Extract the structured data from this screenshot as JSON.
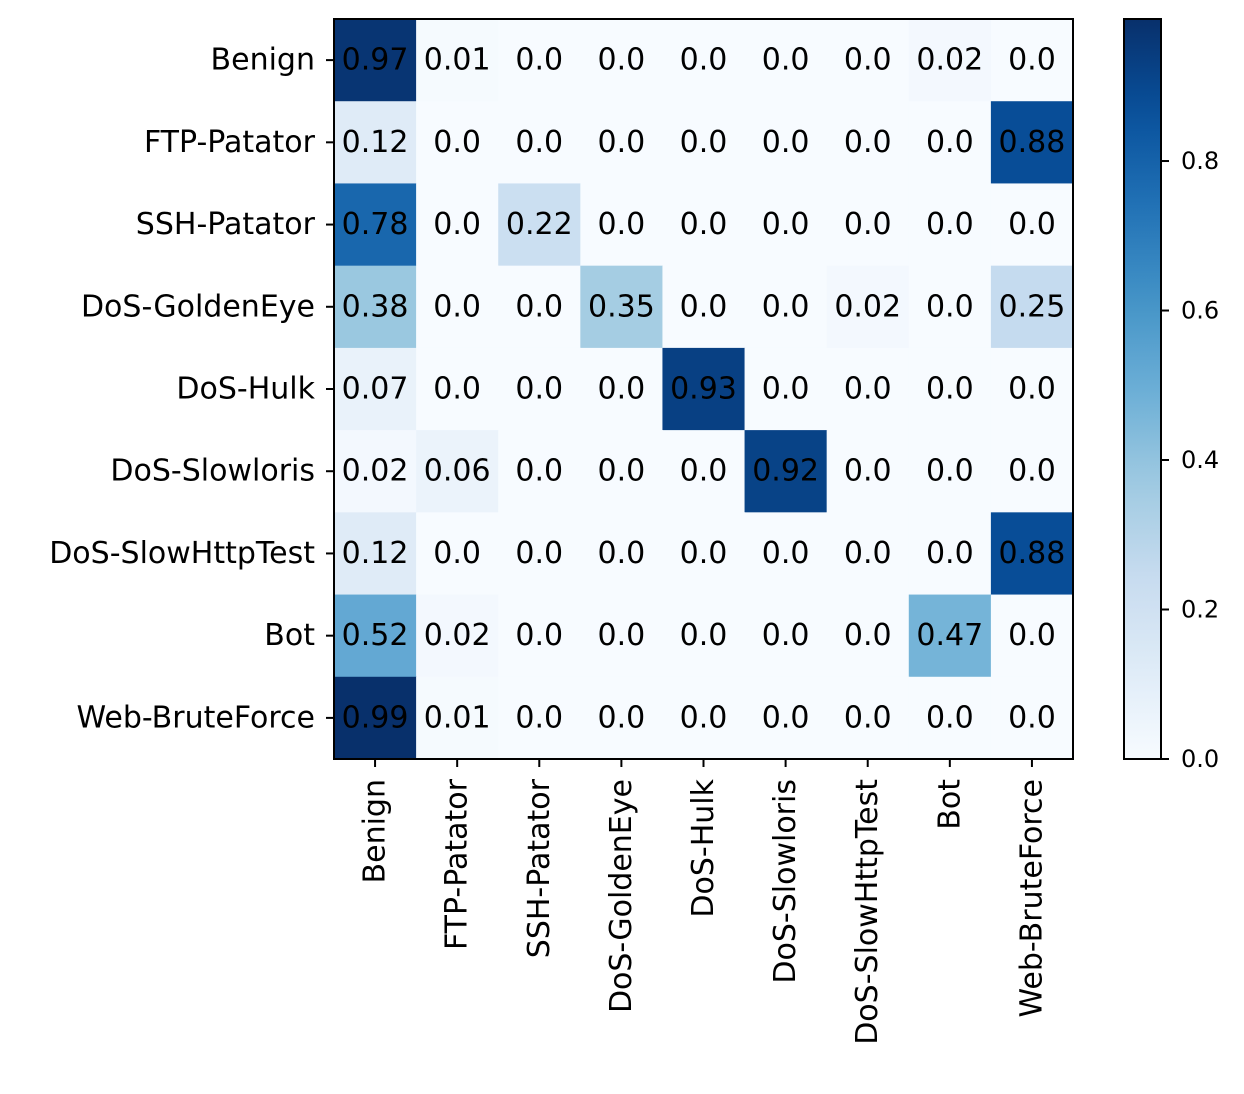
{
  "chart_data": {
    "type": "heatmap",
    "colormap": "Blues",
    "row_labels": [
      "Benign",
      "FTP-Patator",
      "SSH-Patator",
      "DoS-GoldenEye",
      "DoS-Hulk",
      "DoS-Slowloris",
      "DoS-SlowHttpTest",
      "Bot",
      "Web-BruteForce"
    ],
    "col_labels": [
      "Benign",
      "FTP-Patator",
      "SSH-Patator",
      "DoS-GoldenEye",
      "DoS-Hulk",
      "DoS-Slowloris",
      "DoS-SlowHttpTest",
      "Bot",
      "Web-BruteForce"
    ],
    "values": [
      [
        0.97,
        0.01,
        0.0,
        0.0,
        0.0,
        0.0,
        0.0,
        0.02,
        0.0
      ],
      [
        0.12,
        0.0,
        0.0,
        0.0,
        0.0,
        0.0,
        0.0,
        0.0,
        0.88
      ],
      [
        0.78,
        0.0,
        0.22,
        0.0,
        0.0,
        0.0,
        0.0,
        0.0,
        0.0
      ],
      [
        0.38,
        0.0,
        0.0,
        0.35,
        0.0,
        0.0,
        0.02,
        0.0,
        0.25
      ],
      [
        0.07,
        0.0,
        0.0,
        0.0,
        0.93,
        0.0,
        0.0,
        0.0,
        0.0
      ],
      [
        0.02,
        0.06,
        0.0,
        0.0,
        0.0,
        0.92,
        0.0,
        0.0,
        0.0
      ],
      [
        0.12,
        0.0,
        0.0,
        0.0,
        0.0,
        0.0,
        0.0,
        0.0,
        0.88
      ],
      [
        0.52,
        0.02,
        0.0,
        0.0,
        0.0,
        0.0,
        0.0,
        0.47,
        0.0
      ],
      [
        0.99,
        0.01,
        0.0,
        0.0,
        0.0,
        0.0,
        0.0,
        0.0,
        0.0
      ]
    ],
    "cell_labels": [
      [
        "0.97",
        "0.01",
        "0.0",
        "0.0",
        "0.0",
        "0.0",
        "0.0",
        "0.02",
        "0.0"
      ],
      [
        "0.12",
        "0.0",
        "0.0",
        "0.0",
        "0.0",
        "0.0",
        "0.0",
        "0.0",
        "0.88"
      ],
      [
        "0.78",
        "0.0",
        "0.22",
        "0.0",
        "0.0",
        "0.0",
        "0.0",
        "0.0",
        "0.0"
      ],
      [
        "0.38",
        "0.0",
        "0.0",
        "0.35",
        "0.0",
        "0.0",
        "0.02",
        "0.0",
        "0.25"
      ],
      [
        "0.07",
        "0.0",
        "0.0",
        "0.0",
        "0.93",
        "0.0",
        "0.0",
        "0.0",
        "0.0"
      ],
      [
        "0.02",
        "0.06",
        "0.0",
        "0.0",
        "0.0",
        "0.92",
        "0.0",
        "0.0",
        "0.0"
      ],
      [
        "0.12",
        "0.0",
        "0.0",
        "0.0",
        "0.0",
        "0.0",
        "0.0",
        "0.0",
        "0.88"
      ],
      [
        "0.52",
        "0.02",
        "0.0",
        "0.0",
        "0.0",
        "0.0",
        "0.0",
        "0.47",
        "0.0"
      ],
      [
        "0.99",
        "0.01",
        "0.0",
        "0.0",
        "0.0",
        "0.0",
        "0.0",
        "0.0",
        "0.0"
      ]
    ],
    "colorbar": {
      "range": [
        0.0,
        0.99
      ],
      "ticks": [
        0.0,
        0.2,
        0.4,
        0.6,
        0.8
      ],
      "tick_labels": [
        "0.0",
        "0.2",
        "0.4",
        "0.6",
        "0.8"
      ]
    },
    "title": "",
    "xlabel": "",
    "ylabel": ""
  }
}
